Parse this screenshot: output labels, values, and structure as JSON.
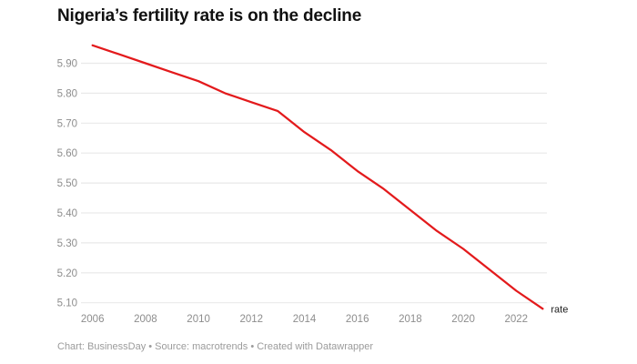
{
  "header": {
    "title": "Nigeria’s fertility rate is on the decline"
  },
  "footer": {
    "text": "Chart: BusinessDay • Source: macrotrends • Created with Datawrapper"
  },
  "chart_data": {
    "type": "line",
    "title": "Nigeria’s fertility rate is on the decline",
    "x": [
      2006,
      2007,
      2008,
      2009,
      2010,
      2011,
      2012,
      2013,
      2014,
      2015,
      2016,
      2017,
      2018,
      2019,
      2020,
      2021,
      2022,
      2023
    ],
    "series": [
      {
        "name": "rate",
        "color": "#e31a1c",
        "values": [
          5.96,
          5.93,
          5.9,
          5.87,
          5.84,
          5.8,
          5.77,
          5.74,
          5.67,
          5.61,
          5.54,
          5.48,
          5.41,
          5.34,
          5.28,
          5.21,
          5.14,
          5.08
        ]
      }
    ],
    "end_label": "rate",
    "xlabel": "",
    "ylabel": "",
    "y_ticks": [
      5.9,
      5.8,
      5.7,
      5.6,
      5.5,
      5.4,
      5.3,
      5.2,
      5.1
    ],
    "x_ticks": [
      2006,
      2008,
      2010,
      2012,
      2014,
      2016,
      2018,
      2020,
      2022
    ],
    "ylim": [
      5.05,
      5.97
    ],
    "xlim": [
      2006,
      2023
    ],
    "grid": "horizontal-only",
    "legend_position": "end-of-line",
    "colors": {
      "line": "#e31a1c",
      "grid": "#e9e9e9",
      "tick_text": "#8d8d8d",
      "footer_text": "#9b9b9b",
      "title_text": "#111111",
      "end_label_text": "#1a1a1a",
      "background": "#ffffff"
    }
  }
}
